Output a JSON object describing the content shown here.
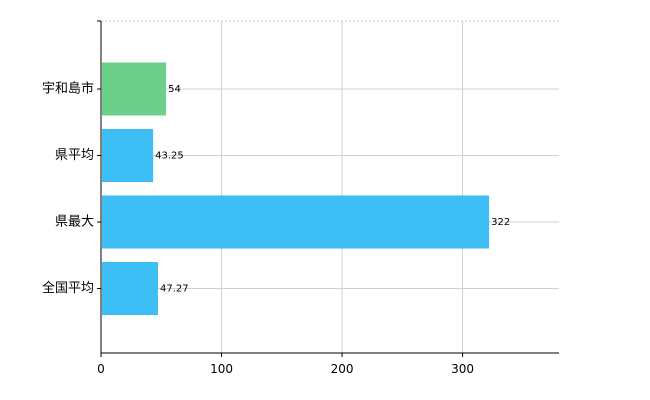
{
  "chart_data": {
    "type": "bar",
    "orientation": "horizontal",
    "categories": [
      "宇和島市",
      "県平均",
      "県最大",
      "全国平均"
    ],
    "values": [
      54,
      43.25,
      322,
      47.27
    ],
    "value_labels": [
      "54",
      "43.25",
      "322",
      "47.27"
    ],
    "bar_colors": [
      "#6dd08a",
      "#3dbef4",
      "#3dbef4",
      "#3dbef4"
    ],
    "xlim": [
      0,
      380
    ],
    "xticks": [
      0,
      100,
      200,
      300
    ],
    "xtick_labels": [
      "0",
      "100",
      "200",
      "300"
    ],
    "grid": true,
    "title": "",
    "xlabel": "",
    "ylabel": ""
  }
}
